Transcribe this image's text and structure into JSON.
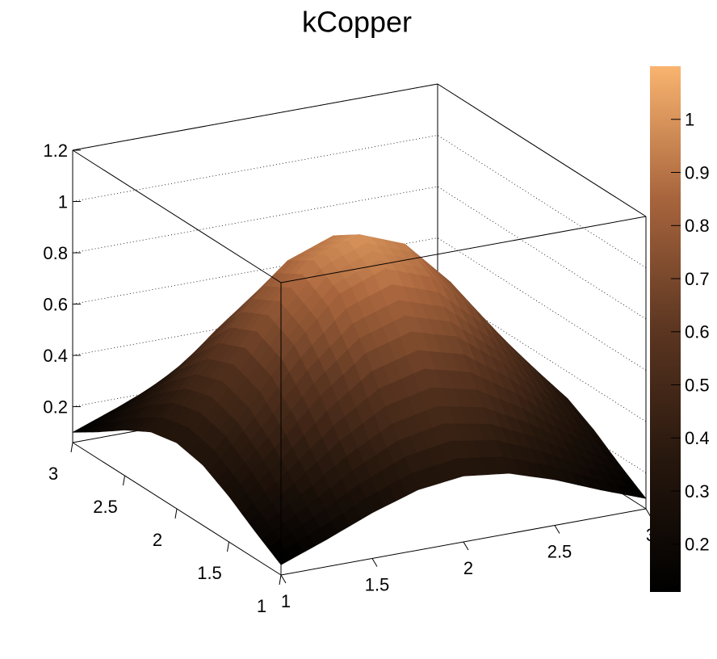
{
  "chart_data": {
    "type": "surface",
    "title": "kCopper",
    "x": [
      1,
      1.25,
      1.5,
      1.75,
      2,
      2.25,
      2.5,
      2.75,
      3
    ],
    "y": [
      1,
      1.25,
      1.5,
      1.75,
      2,
      2.25,
      2.5,
      2.75,
      3
    ],
    "z": [
      [
        0.1,
        0.166,
        0.238,
        0.295,
        0.317,
        0.295,
        0.238,
        0.166,
        0.1
      ],
      [
        0.166,
        0.274,
        0.393,
        0.487,
        0.524,
        0.487,
        0.393,
        0.274,
        0.166
      ],
      [
        0.238,
        0.393,
        0.563,
        0.698,
        0.75,
        0.698,
        0.563,
        0.393,
        0.238
      ],
      [
        0.295,
        0.487,
        0.698,
        0.866,
        0.931,
        0.866,
        0.698,
        0.487,
        0.295
      ],
      [
        0.317,
        0.524,
        0.75,
        0.931,
        1.0,
        0.931,
        0.75,
        0.524,
        0.317
      ],
      [
        0.295,
        0.487,
        0.698,
        0.866,
        0.931,
        0.866,
        0.698,
        0.487,
        0.295
      ],
      [
        0.238,
        0.393,
        0.563,
        0.698,
        0.75,
        0.698,
        0.563,
        0.393,
        0.238
      ],
      [
        0.166,
        0.274,
        0.393,
        0.487,
        0.524,
        0.487,
        0.393,
        0.274,
        0.166
      ],
      [
        0.1,
        0.166,
        0.238,
        0.295,
        0.317,
        0.295,
        0.238,
        0.166,
        0.1
      ]
    ],
    "xlim": [
      1,
      3
    ],
    "ylim": [
      1,
      3
    ],
    "zlim": [
      0.06,
      1.2
    ],
    "xticks": [
      1,
      1.5,
      2,
      2.5,
      3
    ],
    "yticks": [
      1,
      1.5,
      2,
      2.5,
      3
    ],
    "zticks": [
      0.2,
      0.4,
      0.6,
      0.8,
      1,
      1.2
    ],
    "grid": true,
    "palette": [
      "#000000",
      "#26170d",
      "#5c3621",
      "#a8653d",
      "#f9b46f"
    ],
    "colorbar": {
      "lim": [
        0.11,
        1.1
      ],
      "ticks": [
        0.2,
        0.3,
        0.4,
        0.5,
        0.6,
        0.7,
        0.8,
        0.9,
        1
      ]
    }
  }
}
